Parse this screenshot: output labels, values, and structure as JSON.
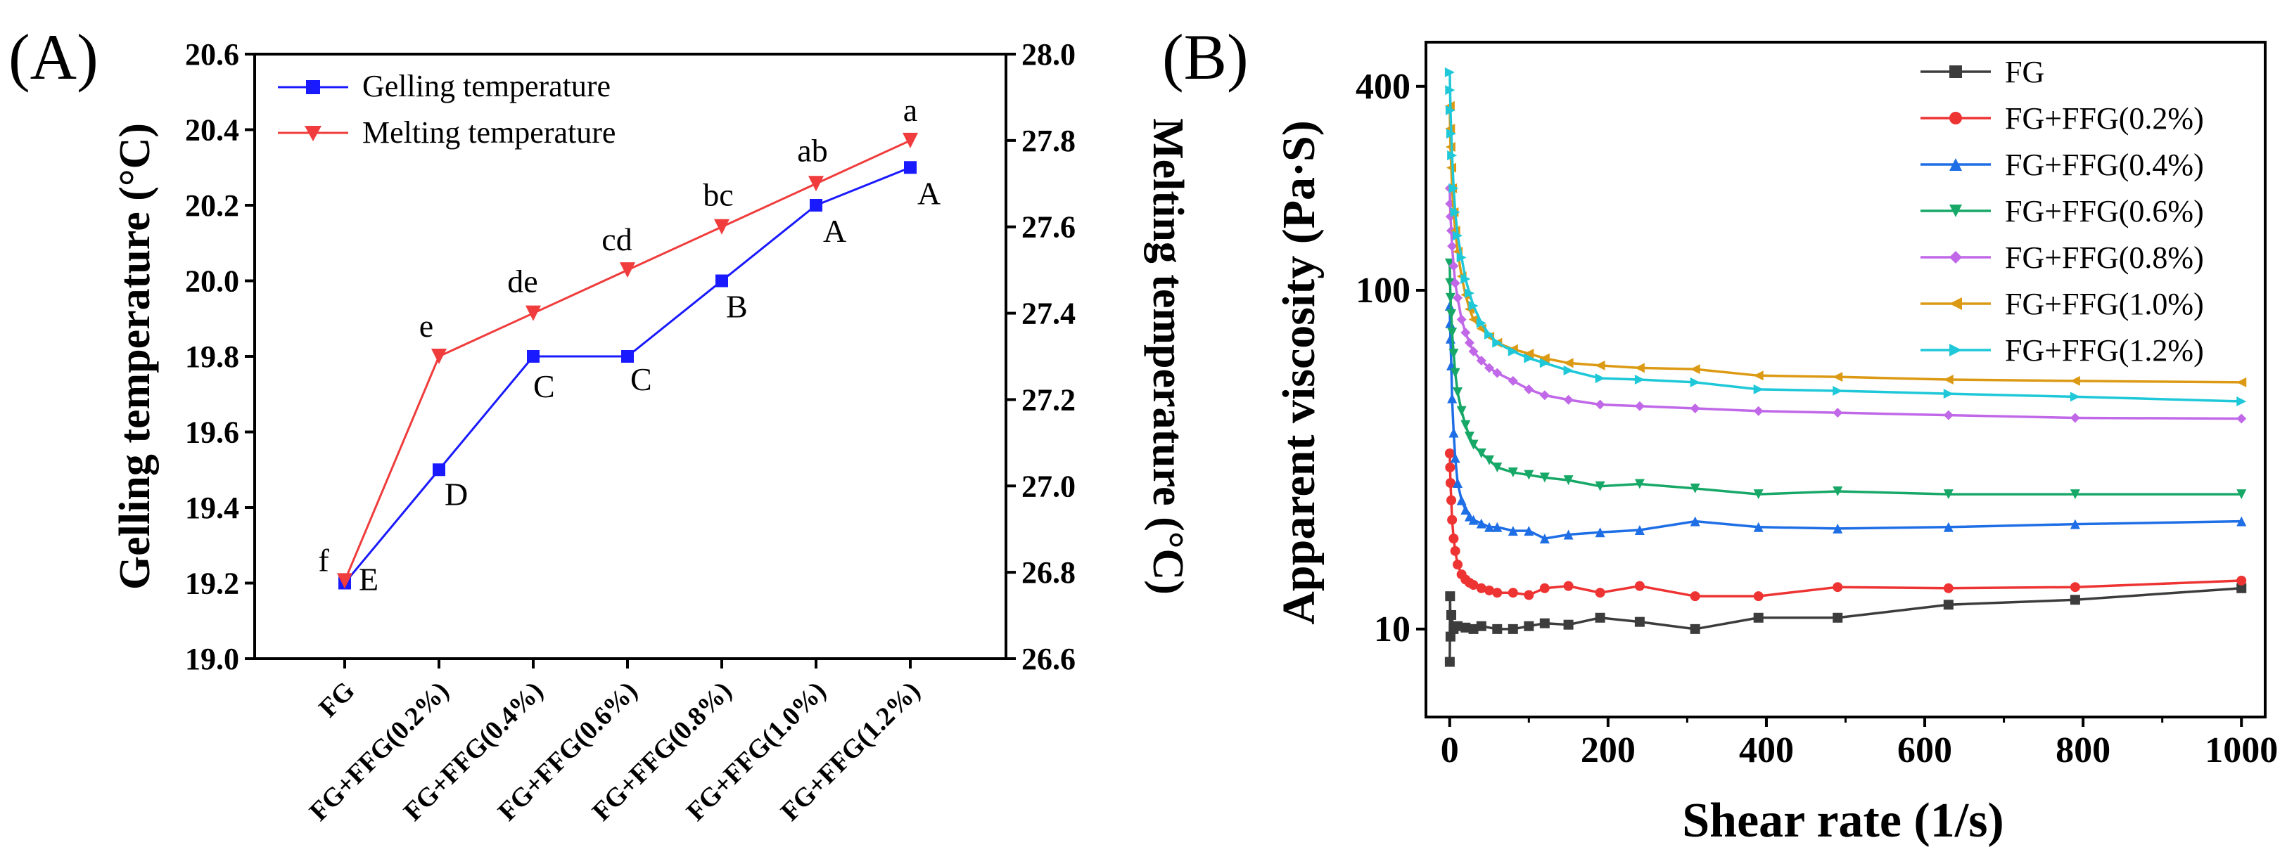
{
  "chart_data": [
    {
      "panel": "(A)",
      "type": "line",
      "categories": [
        "FG",
        "FG+FFG(0.2%)",
        "FG+FFG(0.4%)",
        "FG+FFG(0.6%)",
        "FG+FFG(0.8%)",
        "FG+FFG(1.0%)",
        "FG+FFG(1.2%)"
      ],
      "ylabel": "Gelling temperature (°C)",
      "ylabel2": "Melting temperature (°C)",
      "ylim": [
        19.0,
        20.6
      ],
      "ylim2": [
        26.6,
        28.0
      ],
      "yticks": [
        19.0,
        19.2,
        19.4,
        19.6,
        19.8,
        20.0,
        20.2,
        20.4,
        20.6
      ],
      "yticks2": [
        26.6,
        26.8,
        27.0,
        27.2,
        27.4,
        27.6,
        27.8,
        28.0
      ],
      "legend_position": "top-left",
      "series": [
        {
          "name": "Gelling temperature",
          "axis": "left",
          "color": "#1a1aff",
          "marker": "square",
          "values": [
            19.2,
            19.5,
            19.8,
            19.8,
            20.0,
            20.2,
            20.3
          ],
          "labels": [
            "E",
            "D",
            "C",
            "C",
            "B",
            "A",
            "A"
          ]
        },
        {
          "name": "Melting temperature",
          "axis": "right",
          "color": "#f03c3c",
          "marker": "triangle-down",
          "values": [
            26.78,
            27.3,
            27.4,
            27.5,
            27.6,
            27.7,
            27.8
          ],
          "labels": [
            "f",
            "e",
            "de",
            "cd",
            "bc",
            "ab",
            "a"
          ]
        }
      ]
    },
    {
      "panel": "(B)",
      "type": "line",
      "xlabel": "Shear rate (1/s)",
      "ylabel": "Apparent viscosity (Pa·S)",
      "yscale": "log",
      "xlim": [
        -30,
        1030
      ],
      "ylim": [
        5.5,
        540
      ],
      "xticks": [
        0,
        200,
        400,
        600,
        800,
        1000
      ],
      "yticks": [
        10,
        100,
        400
      ],
      "legend_position": "top-right",
      "series": [
        {
          "name": "FG",
          "color": "#3c3c3c",
          "marker": "square",
          "x": [
            0.1,
            0.5,
            1,
            2,
            5,
            10,
            20,
            30,
            40,
            60,
            80,
            100,
            120,
            150,
            190,
            240,
            310,
            390,
            490,
            630,
            790,
            1000
          ],
          "y": [
            8,
            12.5,
            9.5,
            11,
            10,
            10.2,
            10.1,
            10,
            10.2,
            10,
            10,
            10.2,
            10.4,
            10.3,
            10.8,
            10.5,
            10,
            10.8,
            10.8,
            11.8,
            12.2,
            13.2
          ]
        },
        {
          "name": "FG+FFG(0.2%)",
          "color": "#ee3333",
          "marker": "circle",
          "x": [
            0.1,
            0.5,
            1,
            2,
            3,
            5,
            7,
            10,
            15,
            20,
            25,
            30,
            40,
            50,
            60,
            80,
            100,
            120,
            150,
            190,
            240,
            310,
            390,
            490,
            630,
            790,
            1000
          ],
          "y": [
            33,
            30,
            27,
            24,
            21,
            18.5,
            17,
            15.5,
            14.5,
            14,
            13.7,
            13.5,
            13.2,
            13,
            12.8,
            12.8,
            12.6,
            13.2,
            13.4,
            12.8,
            13.4,
            12.5,
            12.5,
            13.3,
            13.2,
            13.3,
            13.9
          ]
        },
        {
          "name": "FG+FFG(0.4%)",
          "color": "#1e6ee6",
          "marker": "triangle-up",
          "x": [
            0.1,
            0.5,
            1,
            2,
            3,
            5,
            7,
            10,
            15,
            20,
            25,
            30,
            40,
            50,
            60,
            80,
            100,
            120,
            150,
            190,
            240,
            310,
            390,
            490,
            630,
            790,
            1000
          ],
          "y": [
            90,
            80,
            72,
            60,
            48,
            38,
            32,
            27,
            24,
            22.5,
            21.5,
            21,
            20.5,
            20,
            20,
            19.5,
            19.5,
            18.5,
            19,
            19.3,
            19.6,
            20.8,
            20,
            19.8,
            20,
            20.4,
            20.8
          ]
        },
        {
          "name": "FG+FFG(0.6%)",
          "color": "#17a867",
          "marker": "triangle-down",
          "x": [
            0.1,
            0.5,
            1,
            2,
            3,
            5,
            7,
            10,
            15,
            20,
            25,
            30,
            40,
            50,
            60,
            80,
            100,
            120,
            150,
            190,
            240,
            310,
            390,
            490,
            630,
            790,
            1000
          ],
          "y": [
            120,
            105,
            95,
            85,
            75,
            65,
            57,
            50,
            44,
            40,
            37,
            35,
            33,
            31.5,
            30,
            29,
            28.5,
            28,
            27.5,
            26.4,
            26.8,
            26,
            25,
            25.5,
            25,
            25,
            25
          ]
        },
        {
          "name": "FG+FFG(0.8%)",
          "color": "#c068e8",
          "marker": "diamond",
          "x": [
            0.1,
            0.5,
            1,
            2,
            3,
            5,
            7,
            10,
            15,
            20,
            25,
            30,
            40,
            50,
            60,
            80,
            100,
            120,
            150,
            190,
            240,
            310,
            390,
            490,
            630,
            790,
            1000
          ],
          "y": [
            200,
            180,
            165,
            150,
            135,
            118,
            105,
            95,
            82,
            75,
            70,
            66,
            62,
            59,
            57,
            54,
            51,
            49,
            47.5,
            46,
            45.5,
            44.8,
            44,
            43.5,
            42.8,
            42,
            41.8
          ]
        },
        {
          "name": "FG+FFG(1.0%)",
          "color": "#dc9a14",
          "marker": "triangle-left",
          "x": [
            0.1,
            0.5,
            1,
            2,
            3,
            5,
            7,
            10,
            15,
            20,
            25,
            30,
            40,
            50,
            60,
            80,
            100,
            120,
            150,
            190,
            240,
            310,
            390,
            490,
            630,
            790,
            1000
          ],
          "y": [
            350,
            300,
            265,
            230,
            200,
            170,
            150,
            130,
            110,
            97,
            88,
            82,
            77,
            73,
            70,
            67,
            65,
            63,
            61,
            60,
            59,
            58.5,
            56,
            55.5,
            54.5,
            54,
            53.5
          ]
        },
        {
          "name": "FG+FFG(1.2%)",
          "color": "#1ec8d8",
          "marker": "triangle-right",
          "x": [
            0.1,
            0.5,
            1,
            2,
            3,
            5,
            7,
            10,
            15,
            20,
            25,
            30,
            40,
            50,
            60,
            80,
            100,
            120,
            150,
            190,
            240,
            310,
            390,
            490,
            630,
            790,
            1000
          ],
          "y": [
            440,
            390,
            340,
            290,
            250,
            200,
            170,
            145,
            125,
            108,
            98,
            90,
            80,
            74,
            70,
            66,
            63,
            61,
            58,
            55,
            54.5,
            53.5,
            51,
            50.5,
            49.5,
            48.5,
            47
          ]
        }
      ]
    }
  ]
}
